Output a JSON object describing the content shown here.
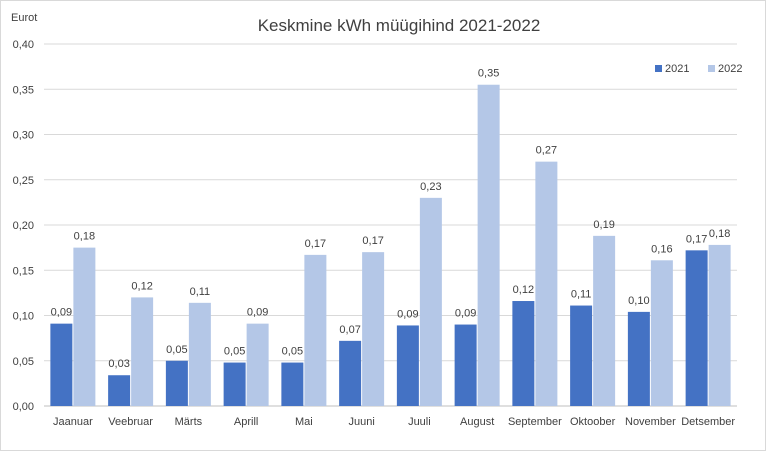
{
  "chart_data": {
    "type": "bar",
    "title": "Keskmine kWh müügihind 2021-2022",
    "ylabel": "Eurot",
    "xlabel": "",
    "ylim": [
      0,
      0.4
    ],
    "yticks": [
      0,
      0.05,
      0.1,
      0.15,
      0.2,
      0.25,
      0.3,
      0.35,
      0.4
    ],
    "ytick_labels": [
      "0,00",
      "0,05",
      "0,10",
      "0,15",
      "0,20",
      "0,25",
      "0,30",
      "0,35",
      "0,40"
    ],
    "grid": true,
    "legend_position": "top-right",
    "categories": [
      "Jaanuar",
      "Veebruar",
      "Märts",
      "Aprill",
      "Mai",
      "Juuni",
      "Juuli",
      "August",
      "September",
      "Oktoober",
      "November",
      "Detsember"
    ],
    "series": [
      {
        "name": "2021",
        "color": "#4472c4",
        "values": [
          0.091,
          0.034,
          0.05,
          0.048,
          0.048,
          0.072,
          0.089,
          0.09,
          0.116,
          0.111,
          0.104,
          0.172
        ],
        "labels": [
          "0,09",
          "0,03",
          "0,05",
          "0,05",
          "0,05",
          "0,07",
          "0,09",
          "0,09",
          "0,12",
          "0,11",
          "0,10",
          "0,17"
        ]
      },
      {
        "name": "2022",
        "color": "#b4c7e7",
        "values": [
          0.175,
          0.12,
          0.114,
          0.091,
          0.167,
          0.17,
          0.23,
          0.355,
          0.27,
          0.188,
          0.161,
          0.178
        ],
        "labels": [
          "0,18",
          "0,12",
          "0,11",
          "0,09",
          "0,17",
          "0,17",
          "0,23",
          "0,35",
          "0,27",
          "0,19",
          "0,16",
          "0,18"
        ]
      }
    ]
  }
}
